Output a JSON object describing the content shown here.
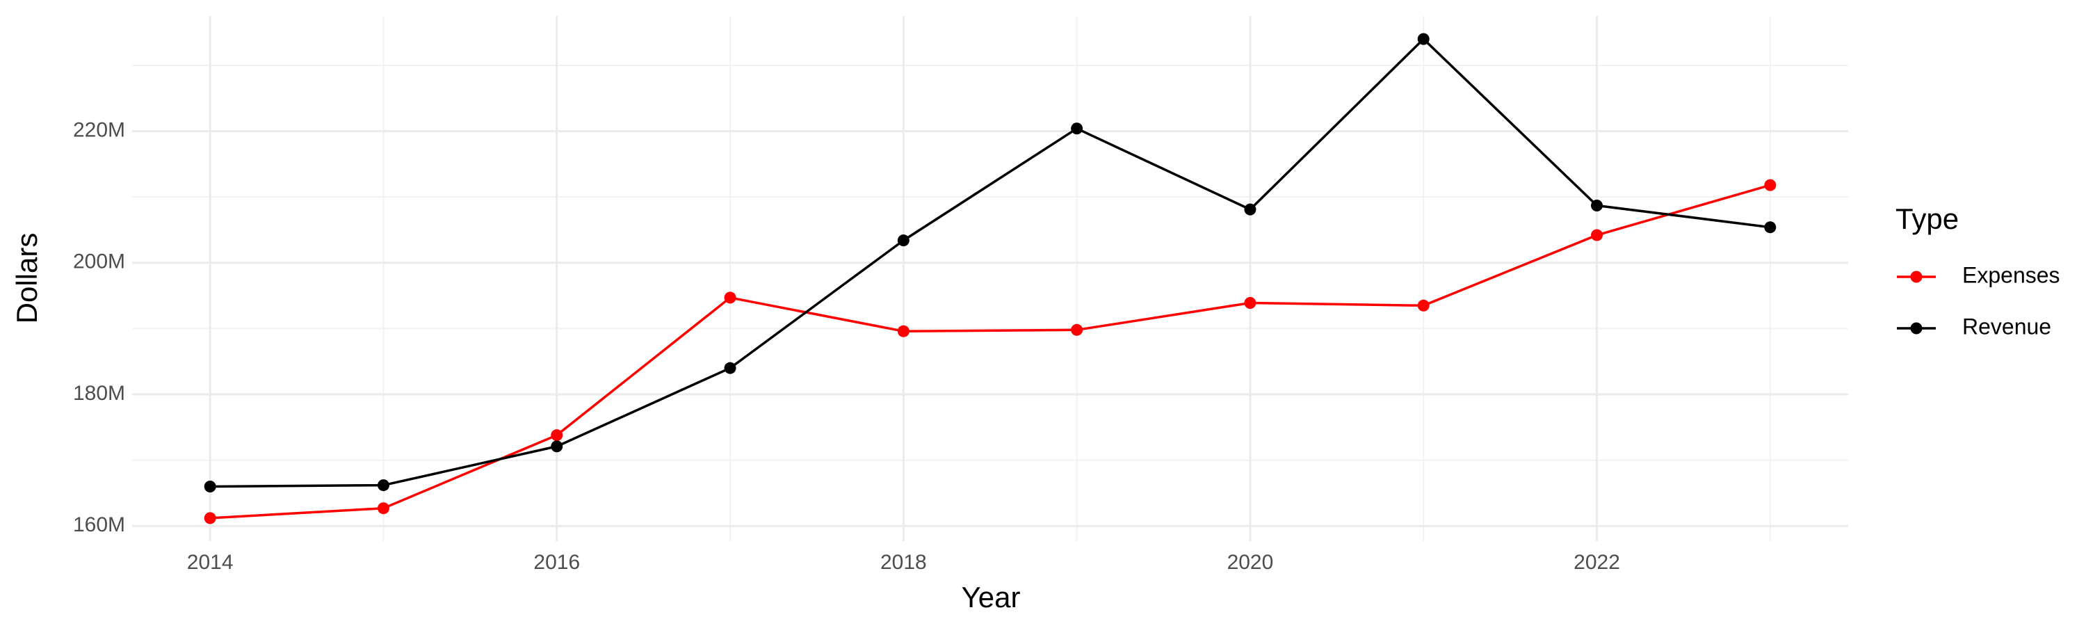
{
  "chart_data": {
    "type": "line",
    "x_label": "Year",
    "y_label": "Dollars",
    "legend_title": "Type",
    "x": [
      2014,
      2015,
      2016,
      2017,
      2018,
      2019,
      2020,
      2021,
      2022,
      2023
    ],
    "series": [
      {
        "name": "Expenses",
        "color": "#ff0000",
        "values": [
          161.2,
          162.7,
          173.8,
          194.7,
          189.6,
          189.8,
          193.9,
          193.5,
          204.2,
          211.8
        ]
      },
      {
        "name": "Revenue",
        "color": "#000000",
        "values": [
          166.0,
          166.2,
          172.1,
          184.0,
          203.4,
          220.4,
          208.1,
          234.0,
          208.7,
          205.4
        ]
      }
    ],
    "xlim": [
      2013.55,
      2023.45
    ],
    "xticks": [
      2014,
      2016,
      2018,
      2020,
      2022
    ],
    "ylim": [
      157.7,
      237.5
    ],
    "yticks": [
      {
        "value": 160,
        "label": "160M"
      },
      {
        "value": 180,
        "label": "180M"
      },
      {
        "value": 200,
        "label": "200M"
      },
      {
        "value": 220,
        "label": "220M"
      }
    ],
    "grid": true,
    "legend": "right"
  }
}
